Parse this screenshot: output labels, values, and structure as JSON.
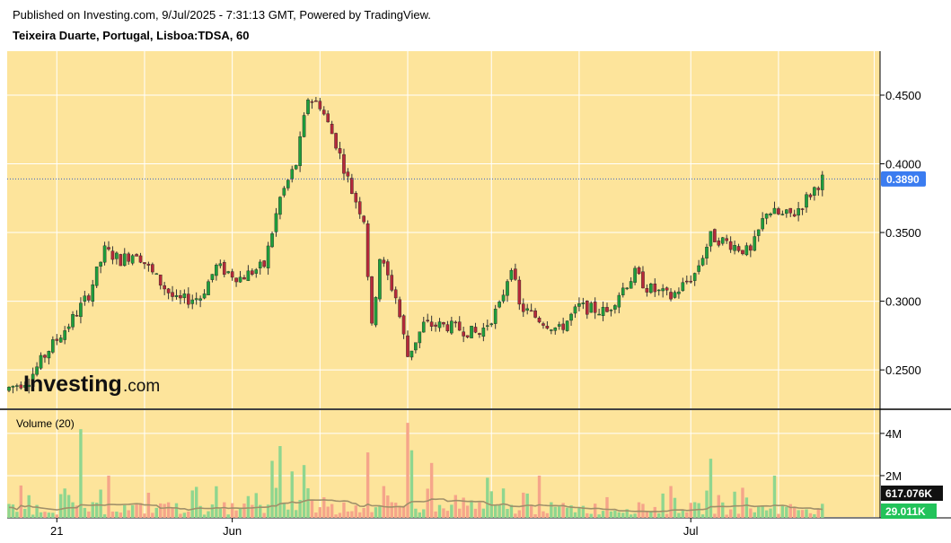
{
  "header": {
    "published": "Published on Investing.com, 9/Jul/2025 - 7:31:13 GMT, Powered by TradingView.",
    "symbol_line": "Teixeira Duarte, Portugal, Lisboa:TDSA, 60"
  },
  "logo": {
    "main": "Investing",
    "domain": ".com"
  },
  "colors": {
    "background": "#fde49b",
    "grid": "#ffffff",
    "up": "#1e9e3c",
    "down": "#b5293a",
    "vol_up": "#8fd68f",
    "vol_down": "#f5a58a",
    "vol_ma": "#a0906a",
    "price_badge": "#3b7cf0",
    "vol_badge_dark": "#111111",
    "vol_badge_green": "#22c35a"
  },
  "chart_data": {
    "type": "candlestick",
    "title": "Teixeira Duarte, Portugal, Lisboa:TDSA, 60",
    "price_axis": {
      "ylim": [
        0.222,
        0.482
      ],
      "ticks": [
        "0.4500",
        "0.4000",
        "0.3500",
        "0.3000",
        "0.2500"
      ],
      "tick_values": [
        0.45,
        0.4,
        0.35,
        0.3,
        0.25
      ]
    },
    "last_price": {
      "value": 0.389,
      "label": "0.3890"
    },
    "x_axis": {
      "labels": [
        {
          "text": "21",
          "bar": 12
        },
        {
          "text": "Jun",
          "bar": 56
        },
        {
          "text": "Jul",
          "bar": 171
        }
      ],
      "grid_bars": [
        12,
        34,
        56,
        78,
        100,
        121,
        143,
        171,
        193,
        217
      ]
    },
    "price_path": [
      [
        0,
        0.237
      ],
      [
        5,
        0.243
      ],
      [
        10,
        0.265
      ],
      [
        15,
        0.283
      ],
      [
        20,
        0.305
      ],
      [
        24,
        0.337
      ],
      [
        28,
        0.33
      ],
      [
        32,
        0.336
      ],
      [
        36,
        0.32
      ],
      [
        42,
        0.3
      ],
      [
        48,
        0.303
      ],
      [
        52,
        0.325
      ],
      [
        58,
        0.317
      ],
      [
        64,
        0.326
      ],
      [
        68,
        0.375
      ],
      [
        72,
        0.4
      ],
      [
        75,
        0.448
      ],
      [
        78,
        0.443
      ],
      [
        82,
        0.415
      ],
      [
        86,
        0.38
      ],
      [
        89,
        0.36
      ],
      [
        91,
        0.28
      ],
      [
        93,
        0.332
      ],
      [
        97,
        0.303
      ],
      [
        100,
        0.26
      ],
      [
        104,
        0.283
      ],
      [
        110,
        0.282
      ],
      [
        118,
        0.276
      ],
      [
        123,
        0.296
      ],
      [
        126,
        0.327
      ],
      [
        128,
        0.296
      ],
      [
        133,
        0.287
      ],
      [
        138,
        0.279
      ],
      [
        143,
        0.296
      ],
      [
        150,
        0.292
      ],
      [
        153,
        0.306
      ],
      [
        157,
        0.32
      ],
      [
        160,
        0.31
      ],
      [
        166,
        0.303
      ],
      [
        172,
        0.32
      ],
      [
        176,
        0.347
      ],
      [
        180,
        0.343
      ],
      [
        186,
        0.335
      ],
      [
        190,
        0.366
      ],
      [
        194,
        0.362
      ],
      [
        197,
        0.364
      ],
      [
        204,
        0.389
      ]
    ],
    "volume": {
      "label": "Volume (20)",
      "ylim": [
        0,
        5.1
      ],
      "unit": "M",
      "ticks": [
        "4M",
        "2M"
      ],
      "tick_values": [
        4,
        2
      ],
      "ma_label": "617.076K",
      "last_label": "29.011K",
      "spikes": [
        {
          "bar": 18,
          "value": 4.2
        },
        {
          "bar": 25,
          "value": 2.0
        },
        {
          "bar": 66,
          "value": 2.7
        },
        {
          "bar": 68,
          "value": 3.4
        },
        {
          "bar": 71,
          "value": 2.2
        },
        {
          "bar": 74,
          "value": 2.5
        },
        {
          "bar": 90,
          "value": 3.1
        },
        {
          "bar": 100,
          "value": 4.5
        },
        {
          "bar": 101,
          "value": 3.2
        },
        {
          "bar": 106,
          "value": 2.6
        },
        {
          "bar": 120,
          "value": 1.9
        },
        {
          "bar": 133,
          "value": 2.0
        },
        {
          "bar": 176,
          "value": 2.8
        },
        {
          "bar": 192,
          "value": 2.0
        }
      ]
    },
    "grid": true
  }
}
